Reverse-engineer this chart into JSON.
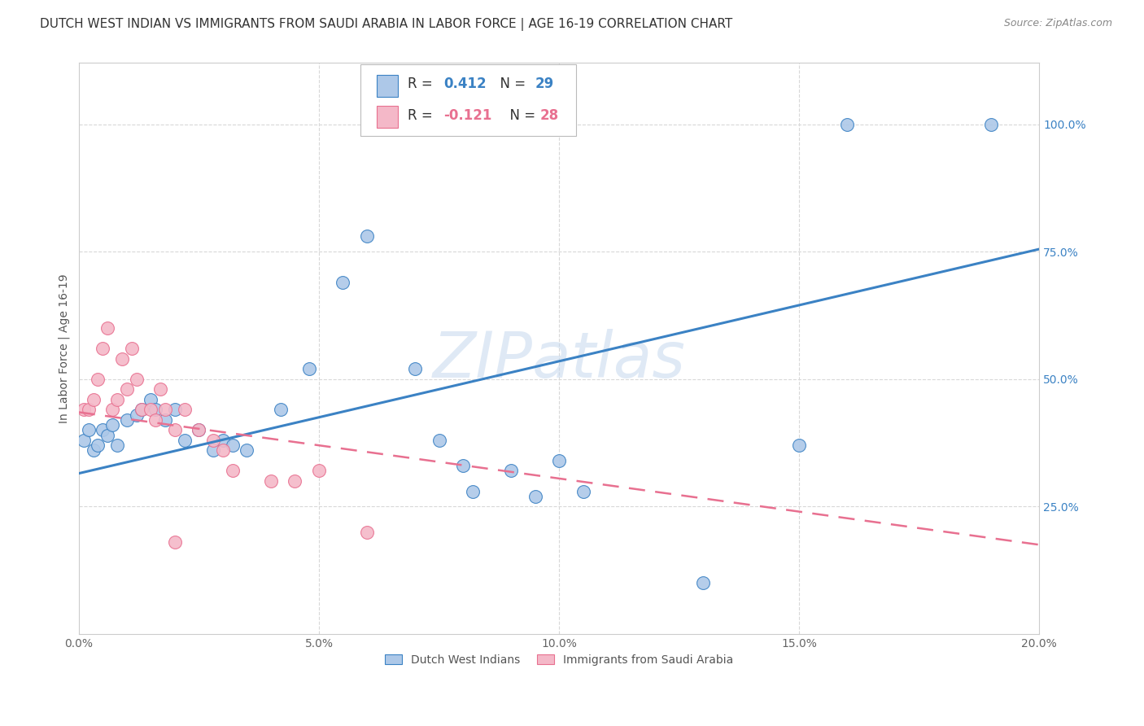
{
  "title": "DUTCH WEST INDIAN VS IMMIGRANTS FROM SAUDI ARABIA IN LABOR FORCE | AGE 16-19 CORRELATION CHART",
  "source": "Source: ZipAtlas.com",
  "ylabel": "In Labor Force | Age 16-19",
  "x_tick_labels": [
    "0.0%",
    "5.0%",
    "10.0%",
    "15.0%",
    "20.0%"
  ],
  "x_tick_values": [
    0.0,
    0.05,
    0.1,
    0.15,
    0.2
  ],
  "y_tick_labels": [
    "25.0%",
    "50.0%",
    "75.0%",
    "100.0%"
  ],
  "y_tick_values": [
    0.25,
    0.5,
    0.75,
    1.0
  ],
  "xlim": [
    0.0,
    0.2
  ],
  "ylim": [
    0.0,
    1.12
  ],
  "legend_color1": "#adc8e8",
  "legend_color2": "#f4b8c8",
  "blue_color": "#3b82c4",
  "pink_color": "#e87090",
  "watermark": "ZIPatlas",
  "background_color": "#ffffff",
  "grid_color": "#d8d8d8",
  "blue_scatter": [
    [
      0.001,
      0.38
    ],
    [
      0.002,
      0.4
    ],
    [
      0.003,
      0.36
    ],
    [
      0.004,
      0.37
    ],
    [
      0.005,
      0.4
    ],
    [
      0.006,
      0.39
    ],
    [
      0.007,
      0.41
    ],
    [
      0.008,
      0.37
    ],
    [
      0.01,
      0.42
    ],
    [
      0.012,
      0.43
    ],
    [
      0.013,
      0.44
    ],
    [
      0.015,
      0.46
    ],
    [
      0.016,
      0.44
    ],
    [
      0.018,
      0.42
    ],
    [
      0.02,
      0.44
    ],
    [
      0.022,
      0.38
    ],
    [
      0.025,
      0.4
    ],
    [
      0.028,
      0.36
    ],
    [
      0.03,
      0.38
    ],
    [
      0.032,
      0.37
    ],
    [
      0.035,
      0.36
    ],
    [
      0.042,
      0.44
    ],
    [
      0.048,
      0.52
    ],
    [
      0.055,
      0.69
    ],
    [
      0.06,
      0.78
    ],
    [
      0.07,
      0.52
    ],
    [
      0.075,
      0.38
    ],
    [
      0.08,
      0.33
    ],
    [
      0.082,
      0.28
    ],
    [
      0.09,
      0.32
    ],
    [
      0.095,
      0.27
    ],
    [
      0.1,
      0.34
    ],
    [
      0.105,
      0.28
    ],
    [
      0.15,
      0.37
    ],
    [
      0.16,
      1.0
    ],
    [
      0.19,
      1.0
    ],
    [
      0.13,
      0.1
    ]
  ],
  "pink_scatter": [
    [
      0.001,
      0.44
    ],
    [
      0.002,
      0.44
    ],
    [
      0.003,
      0.46
    ],
    [
      0.004,
      0.5
    ],
    [
      0.005,
      0.56
    ],
    [
      0.006,
      0.6
    ],
    [
      0.007,
      0.44
    ],
    [
      0.008,
      0.46
    ],
    [
      0.009,
      0.54
    ],
    [
      0.01,
      0.48
    ],
    [
      0.011,
      0.56
    ],
    [
      0.012,
      0.5
    ],
    [
      0.013,
      0.44
    ],
    [
      0.015,
      0.44
    ],
    [
      0.016,
      0.42
    ],
    [
      0.017,
      0.48
    ],
    [
      0.018,
      0.44
    ],
    [
      0.02,
      0.4
    ],
    [
      0.022,
      0.44
    ],
    [
      0.025,
      0.4
    ],
    [
      0.028,
      0.38
    ],
    [
      0.03,
      0.36
    ],
    [
      0.032,
      0.32
    ],
    [
      0.04,
      0.3
    ],
    [
      0.045,
      0.3
    ],
    [
      0.05,
      0.32
    ],
    [
      0.06,
      0.2
    ],
    [
      0.02,
      0.18
    ]
  ],
  "blue_line_x": [
    0.0,
    0.2
  ],
  "blue_line_y": [
    0.315,
    0.755
  ],
  "pink_line_x": [
    0.0,
    0.2
  ],
  "pink_line_y": [
    0.435,
    0.175
  ],
  "title_fontsize": 11,
  "axis_fontsize": 10,
  "tick_fontsize": 10,
  "legend_fontsize": 12
}
